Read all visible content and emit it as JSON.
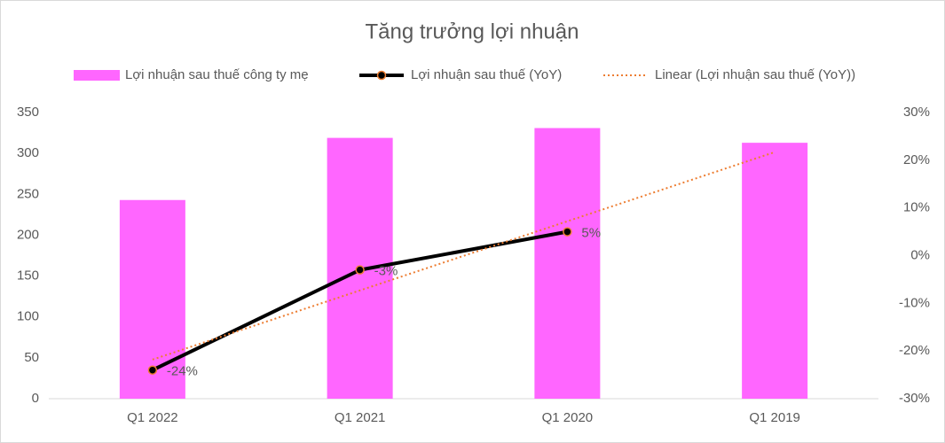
{
  "chart_data": {
    "type": "bar-line",
    "title": "Tăng trưởng lợi nhuận",
    "categories": [
      "Q1 2022",
      "Q1 2021",
      "Q1 2020",
      "Q1 2019"
    ],
    "series": [
      {
        "name": "Lợi nhuận sau thuế công ty mẹ",
        "type": "bar",
        "color": "#ff66ff",
        "values": [
          243,
          319,
          331,
          313
        ]
      },
      {
        "name": "Lợi nhuận sau thuế (YoY)",
        "type": "line",
        "axis": "y2",
        "color": "#000000",
        "marker_color": "#ed7d31",
        "values": [
          -24,
          -3,
          5,
          null
        ],
        "value_labels": [
          "-24%",
          "-3%",
          "5%",
          null
        ]
      },
      {
        "name": "Linear (Lợi nhuận sau thuế (YoY))",
        "type": "trendline",
        "axis": "y2",
        "color": "#ed7d31",
        "values": [
          -21.8,
          -7.3,
          7.2,
          21.7
        ]
      }
    ],
    "ylim": [
      0,
      350
    ],
    "yticks": [
      0,
      50,
      100,
      150,
      200,
      250,
      300,
      350
    ],
    "y2lim": [
      -30,
      30
    ],
    "y2ticks": [
      {
        "value": -30,
        "label": "-30%"
      },
      {
        "value": -20,
        "label": "-20%"
      },
      {
        "value": -10,
        "label": "-10%"
      },
      {
        "value": 0,
        "label": "0%"
      },
      {
        "value": 10,
        "label": "10%"
      },
      {
        "value": 20,
        "label": "20%"
      },
      {
        "value": 30,
        "label": "30%"
      }
    ],
    "legend": "top"
  }
}
